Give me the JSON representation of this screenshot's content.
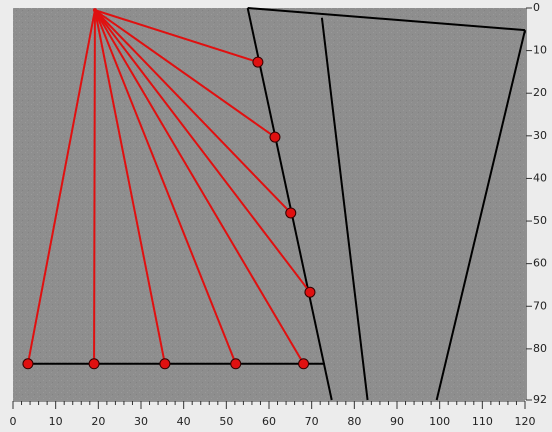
{
  "chart_data": {
    "type": "scatter",
    "xlim": [
      0,
      120
    ],
    "ylim": [
      0,
      92
    ],
    "xticks": [
      0,
      10,
      20,
      30,
      40,
      50,
      60,
      70,
      80,
      90,
      100,
      110,
      120
    ],
    "yticks": [
      0,
      10,
      20,
      30,
      40,
      50,
      60,
      70,
      80,
      92
    ],
    "source": {
      "x": 19.2,
      "y": 0.5
    },
    "receivers": {
      "color": "#e01010",
      "x": [
        57.4,
        61.4,
        65.1,
        69.6,
        3.5,
        19,
        35.6,
        52.2,
        68.1
      ],
      "y": [
        12.7,
        30.3,
        48.1,
        66.7,
        83.5,
        83.5,
        83.5,
        83.5,
        83.5
      ]
    },
    "boundaries": [
      {
        "x": [
          55,
          120
        ],
        "y": [
          0,
          5.2
        ]
      },
      {
        "x": [
          55,
          74.7
        ],
        "y": [
          0,
          92
        ]
      },
      {
        "x": [
          72.4,
          83.1
        ],
        "y": [
          2.3,
          92
        ]
      },
      {
        "x": [
          120,
          99.3
        ],
        "y": [
          5.2,
          92
        ]
      },
      {
        "x": [
          3.5,
          73.1
        ],
        "y": [
          83.5,
          83.5
        ]
      }
    ]
  }
}
